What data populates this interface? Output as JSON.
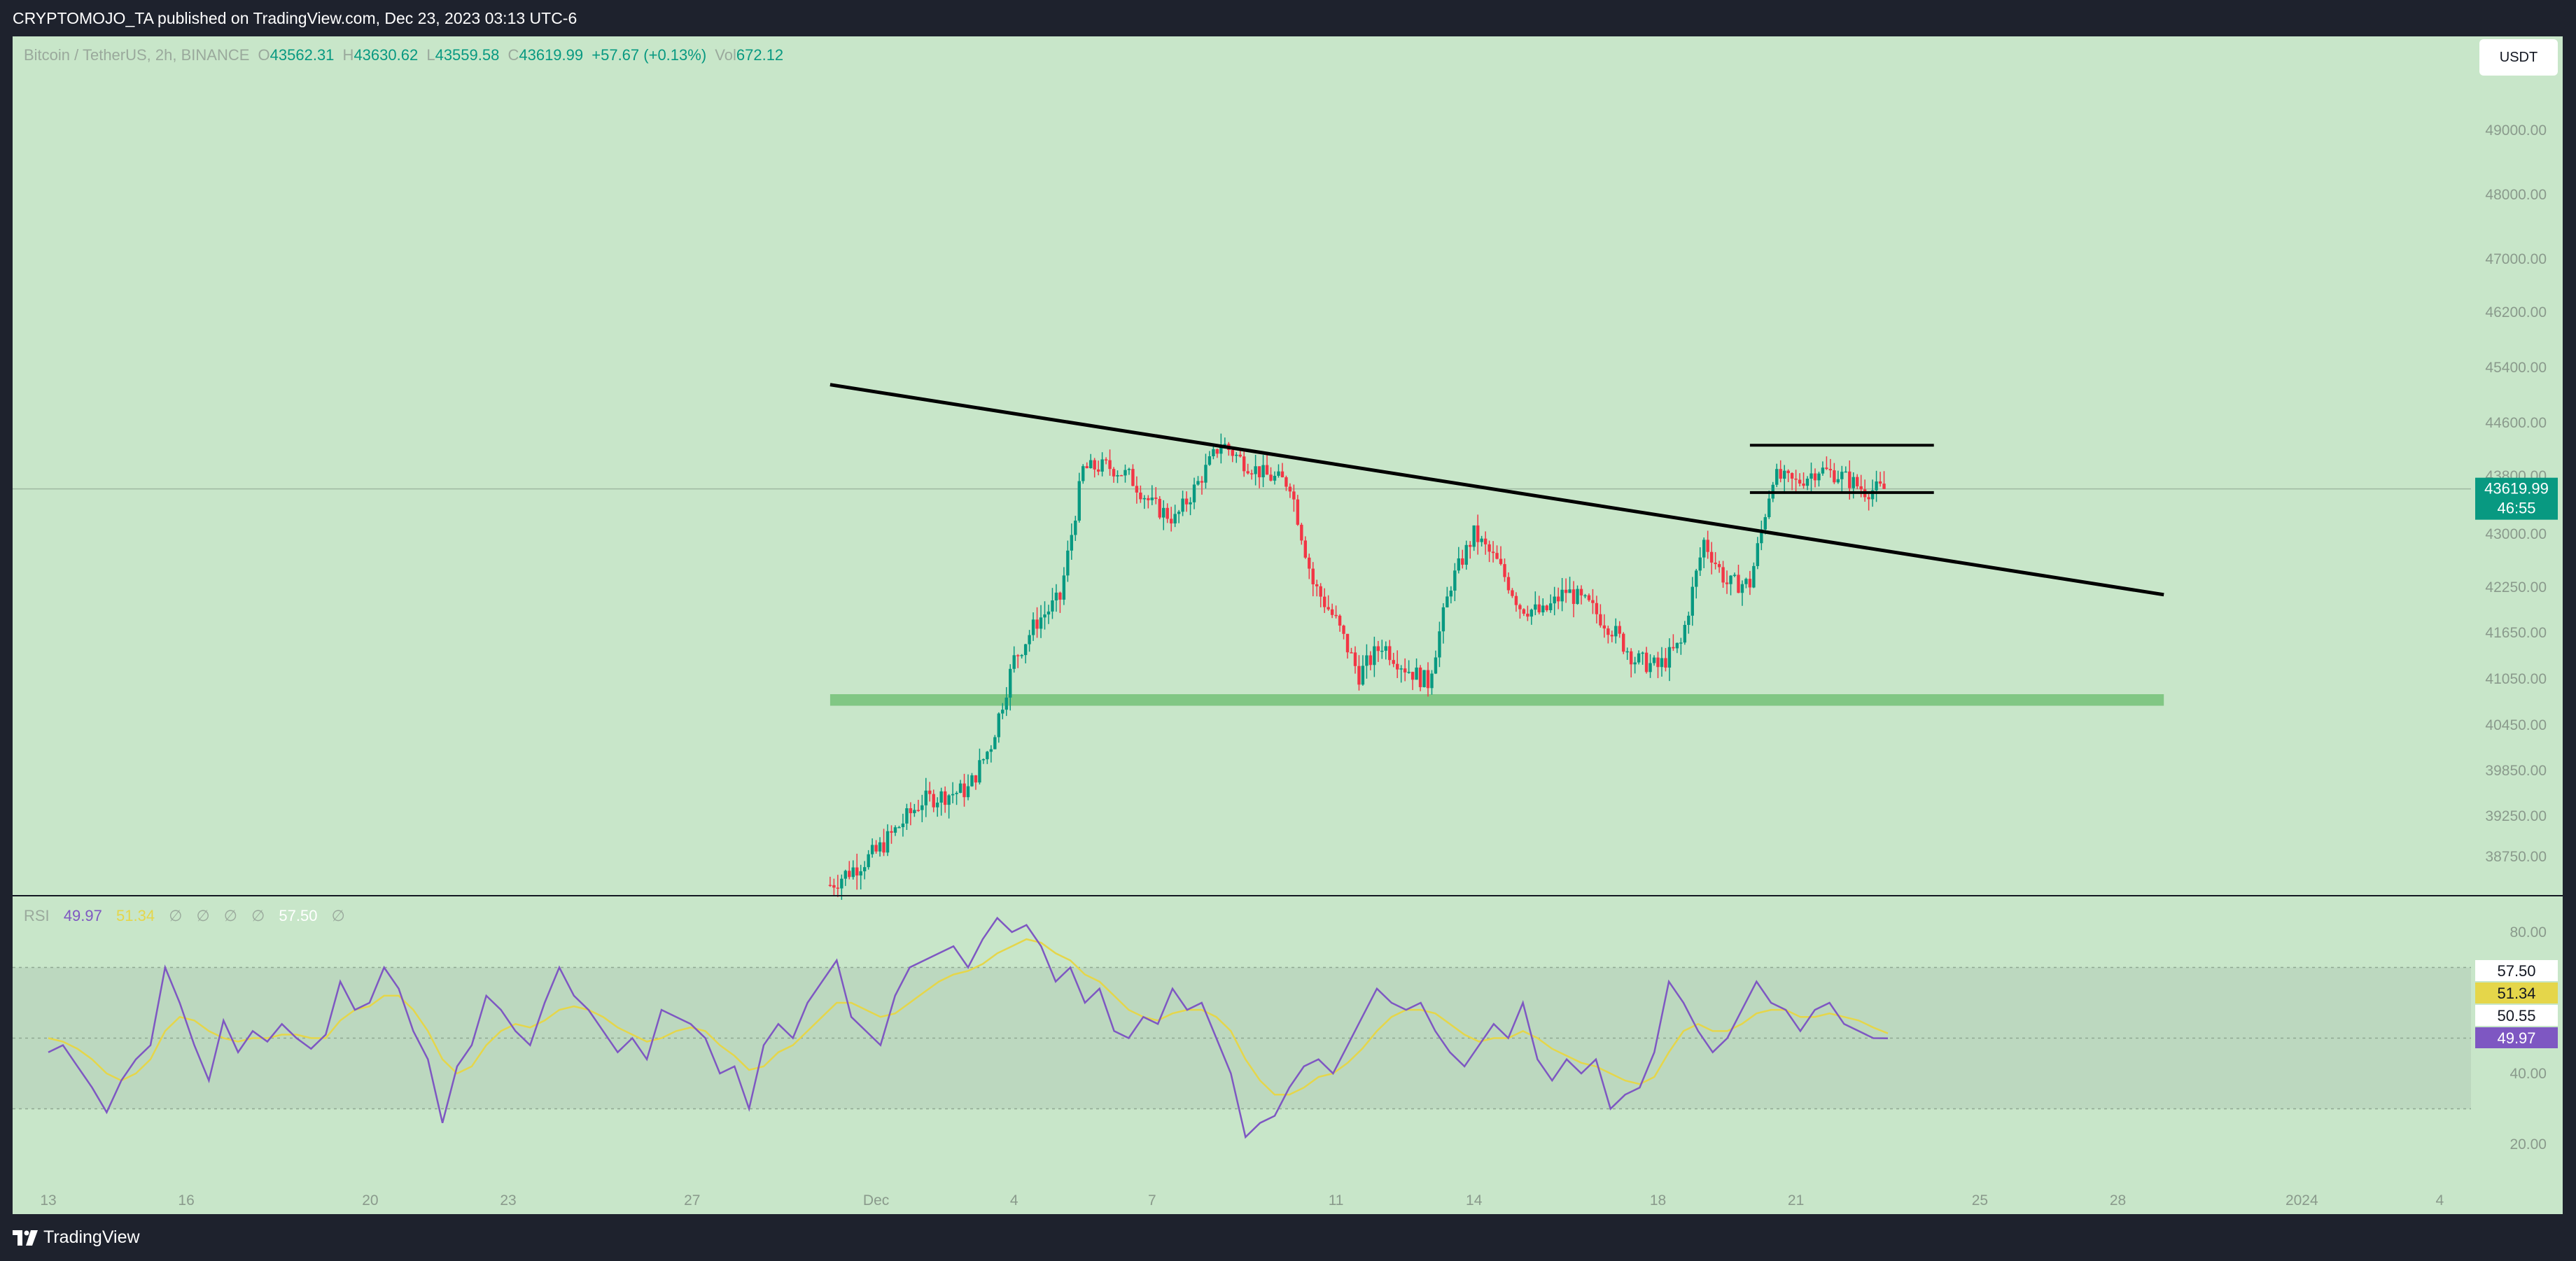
{
  "header": {
    "published": "CRYPTOMOJO_TA published on TradingView.com, Dec 23, 2023 03:13 UTC-6"
  },
  "legend": {
    "symbol": "Bitcoin / TetherUS, 2h, BINANCE",
    "open_label": "O",
    "open": "43562.31",
    "high_label": "H",
    "high": "43630.62",
    "low_label": "L",
    "low": "43559.58",
    "close_label": "C",
    "close": "43619.99",
    "change": "+57.67 (+0.13%)",
    "vol_label": "Vol",
    "vol": "672.12"
  },
  "currency": "USDT",
  "price_badge": {
    "price": "43619.99",
    "countdown": "46:55"
  },
  "rsi_legend": {
    "name": "RSI",
    "rsi": "49.97",
    "ma": "51.34",
    "placeholders": [
      "∅",
      "∅",
      "∅",
      "∅"
    ],
    "upper_band": "57.50",
    "extra": "∅"
  },
  "rsi_badges": [
    "57.50",
    "51.34",
    "50.55",
    "49.97"
  ],
  "footer": {
    "brand": "TradingView"
  },
  "colors": {
    "background": "#c8e6c9",
    "up": "#089981",
    "down": "#f23645",
    "rsi_line": "#7e57c2",
    "rsi_ma": "#e5d64a",
    "support_zone": "#81c784"
  },
  "chart_data": [
    {
      "type": "candlestick",
      "title": "",
      "symbol": "Bitcoin / TetherUS, 2h, BINANCE",
      "y_tick_labels": [
        "49000.00",
        "48000.00",
        "47000.00",
        "46200.00",
        "45400.00",
        "44600.00",
        "43800.00",
        "43000.00",
        "42250.00",
        "41650.00",
        "41050.00",
        "40450.00",
        "39850.00",
        "39250.00",
        "38750.00"
      ],
      "x_tick_labels": [
        "13",
        "16",
        "20",
        "23",
        "27",
        "Dec",
        "4",
        "7",
        "11",
        "14",
        "18",
        "21",
        "25",
        "28",
        "2024",
        "4"
      ],
      "ylim": [
        38550,
        49650
      ],
      "close_series": [
        {
          "x": "2023-11-30",
          "y": 38400
        },
        {
          "x": "2023-12-01",
          "y": 38800
        },
        {
          "x": "2023-12-02",
          "y": 39450
        },
        {
          "x": "2023-12-03",
          "y": 39600
        },
        {
          "x": "2023-12-03 12:00",
          "y": 40200
        },
        {
          "x": "2023-12-04",
          "y": 41300
        },
        {
          "x": "2023-12-04 12:00",
          "y": 41800
        },
        {
          "x": "2023-12-05",
          "y": 42100
        },
        {
          "x": "2023-12-05 12:00",
          "y": 43900
        },
        {
          "x": "2023-12-06",
          "y": 43950
        },
        {
          "x": "2023-12-06 12:00",
          "y": 43800
        },
        {
          "x": "2023-12-07",
          "y": 43400
        },
        {
          "x": "2023-12-07 12:00",
          "y": 43200
        },
        {
          "x": "2023-12-08",
          "y": 43700
        },
        {
          "x": "2023-12-08 12:00",
          "y": 44300
        },
        {
          "x": "2023-12-09",
          "y": 44000
        },
        {
          "x": "2023-12-09 12:00",
          "y": 43800
        },
        {
          "x": "2023-12-10",
          "y": 43700
        },
        {
          "x": "2023-12-10 12:00",
          "y": 42300
        },
        {
          "x": "2023-12-11",
          "y": 41800
        },
        {
          "x": "2023-12-11 12:00",
          "y": 41100
        },
        {
          "x": "2023-12-12",
          "y": 41500
        },
        {
          "x": "2023-12-12 12:00",
          "y": 41200
        },
        {
          "x": "2023-12-13",
          "y": 41000
        },
        {
          "x": "2023-12-13 12:00",
          "y": 42300
        },
        {
          "x": "2023-12-14",
          "y": 43000
        },
        {
          "x": "2023-12-14 12:00",
          "y": 42600
        },
        {
          "x": "2023-12-15",
          "y": 42000
        },
        {
          "x": "2023-12-15 12:00",
          "y": 41900
        },
        {
          "x": "2023-12-16",
          "y": 42200
        },
        {
          "x": "2023-12-16 12:00",
          "y": 42000
        },
        {
          "x": "2023-12-17",
          "y": 41700
        },
        {
          "x": "2023-12-17 12:00",
          "y": 41300
        },
        {
          "x": "2023-12-18",
          "y": 41200
        },
        {
          "x": "2023-12-18 12:00",
          "y": 41500
        },
        {
          "x": "2023-12-19",
          "y": 42900
        },
        {
          "x": "2023-12-19 12:00",
          "y": 42300
        },
        {
          "x": "2023-12-20",
          "y": 42300
        },
        {
          "x": "2023-12-20 12:00",
          "y": 43800
        },
        {
          "x": "2023-12-21",
          "y": 43700
        },
        {
          "x": "2023-12-21 12:00",
          "y": 43900
        },
        {
          "x": "2023-12-22",
          "y": 43800
        },
        {
          "x": "2023-12-22 12:00",
          "y": 43600
        },
        {
          "x": "2023-12-23",
          "y": 43620
        }
      ],
      "annotations": [
        {
          "type": "trendline",
          "from": {
            "x": "2023-11-30",
            "y": 45150
          },
          "to": {
            "x": "2023-12-29",
            "y": 42150
          }
        },
        {
          "type": "support_zone",
          "x_from": "2023-11-30",
          "x_to": "2023-12-29",
          "y_from": 40700,
          "y_to": 40850
        },
        {
          "type": "channel_top",
          "x_from": "2023-12-20",
          "x_to": "2023-12-24",
          "y": 44260
        },
        {
          "type": "channel_bottom",
          "x_from": "2023-12-20",
          "x_to": "2023-12-24",
          "y": 43570
        }
      ],
      "last_price": 43619.99
    },
    {
      "type": "line",
      "title": "RSI",
      "y_tick_labels": [
        "80.00",
        "40.00",
        "20.00"
      ],
      "ylim": [
        14,
        90
      ],
      "bands": [
        30,
        50,
        70
      ],
      "series": [
        {
          "name": "RSI",
          "values": [
            46,
            48,
            42,
            36,
            29,
            38,
            44,
            48,
            70,
            60,
            48,
            38,
            55,
            46,
            52,
            49,
            54,
            50,
            47,
            51,
            66,
            58,
            60,
            70,
            64,
            52,
            44,
            26,
            42,
            48,
            62,
            58,
            52,
            48,
            60,
            70,
            62,
            58,
            52,
            46,
            50,
            44,
            58,
            56,
            54,
            50,
            40,
            42,
            30,
            48,
            54,
            50,
            60,
            66,
            72,
            56,
            52,
            48,
            62,
            70,
            72,
            74,
            76,
            70,
            78,
            84,
            80,
            82,
            76,
            66,
            70,
            60,
            64,
            52,
            50,
            56,
            54,
            64,
            58,
            60,
            50,
            40,
            22,
            26,
            28,
            36,
            42,
            44,
            40,
            48,
            56,
            64,
            60,
            58,
            60,
            52,
            46,
            42,
            48,
            54,
            50,
            60,
            44,
            38,
            44,
            40,
            44,
            30,
            34,
            36,
            46,
            66,
            60,
            52,
            46,
            50,
            58,
            66,
            60,
            58,
            52,
            58,
            60,
            54,
            52,
            50,
            49.97
          ]
        },
        {
          "name": "",
          "values": [
            50,
            49,
            47,
            44,
            40,
            38,
            40,
            44,
            52,
            56,
            55,
            52,
            50,
            49,
            50,
            50,
            51,
            51,
            50,
            50,
            55,
            58,
            59,
            62,
            62,
            58,
            52,
            44,
            40,
            42,
            48,
            52,
            54,
            53,
            55,
            58,
            59,
            58,
            56,
            53,
            51,
            49,
            50,
            52,
            53,
            52,
            48,
            45,
            41,
            42,
            46,
            48,
            52,
            56,
            60,
            60,
            58,
            56,
            57,
            60,
            63,
            66,
            68,
            69,
            71,
            74,
            76,
            78,
            77,
            74,
            72,
            68,
            66,
            62,
            58,
            56,
            55,
            57,
            58,
            58,
            56,
            52,
            44,
            38,
            34,
            34,
            36,
            39,
            40,
            43,
            47,
            52,
            56,
            58,
            58,
            57,
            54,
            51,
            49,
            50,
            50,
            52,
            50,
            47,
            45,
            43,
            42,
            40,
            38,
            37,
            39,
            46,
            52,
            54,
            52,
            52,
            54,
            57,
            58,
            58,
            56,
            56,
            57,
            56,
            55,
            53,
            51.34
          ]
        }
      ],
      "last_rsi": 49.97,
      "last_ma": 51.34
    }
  ]
}
